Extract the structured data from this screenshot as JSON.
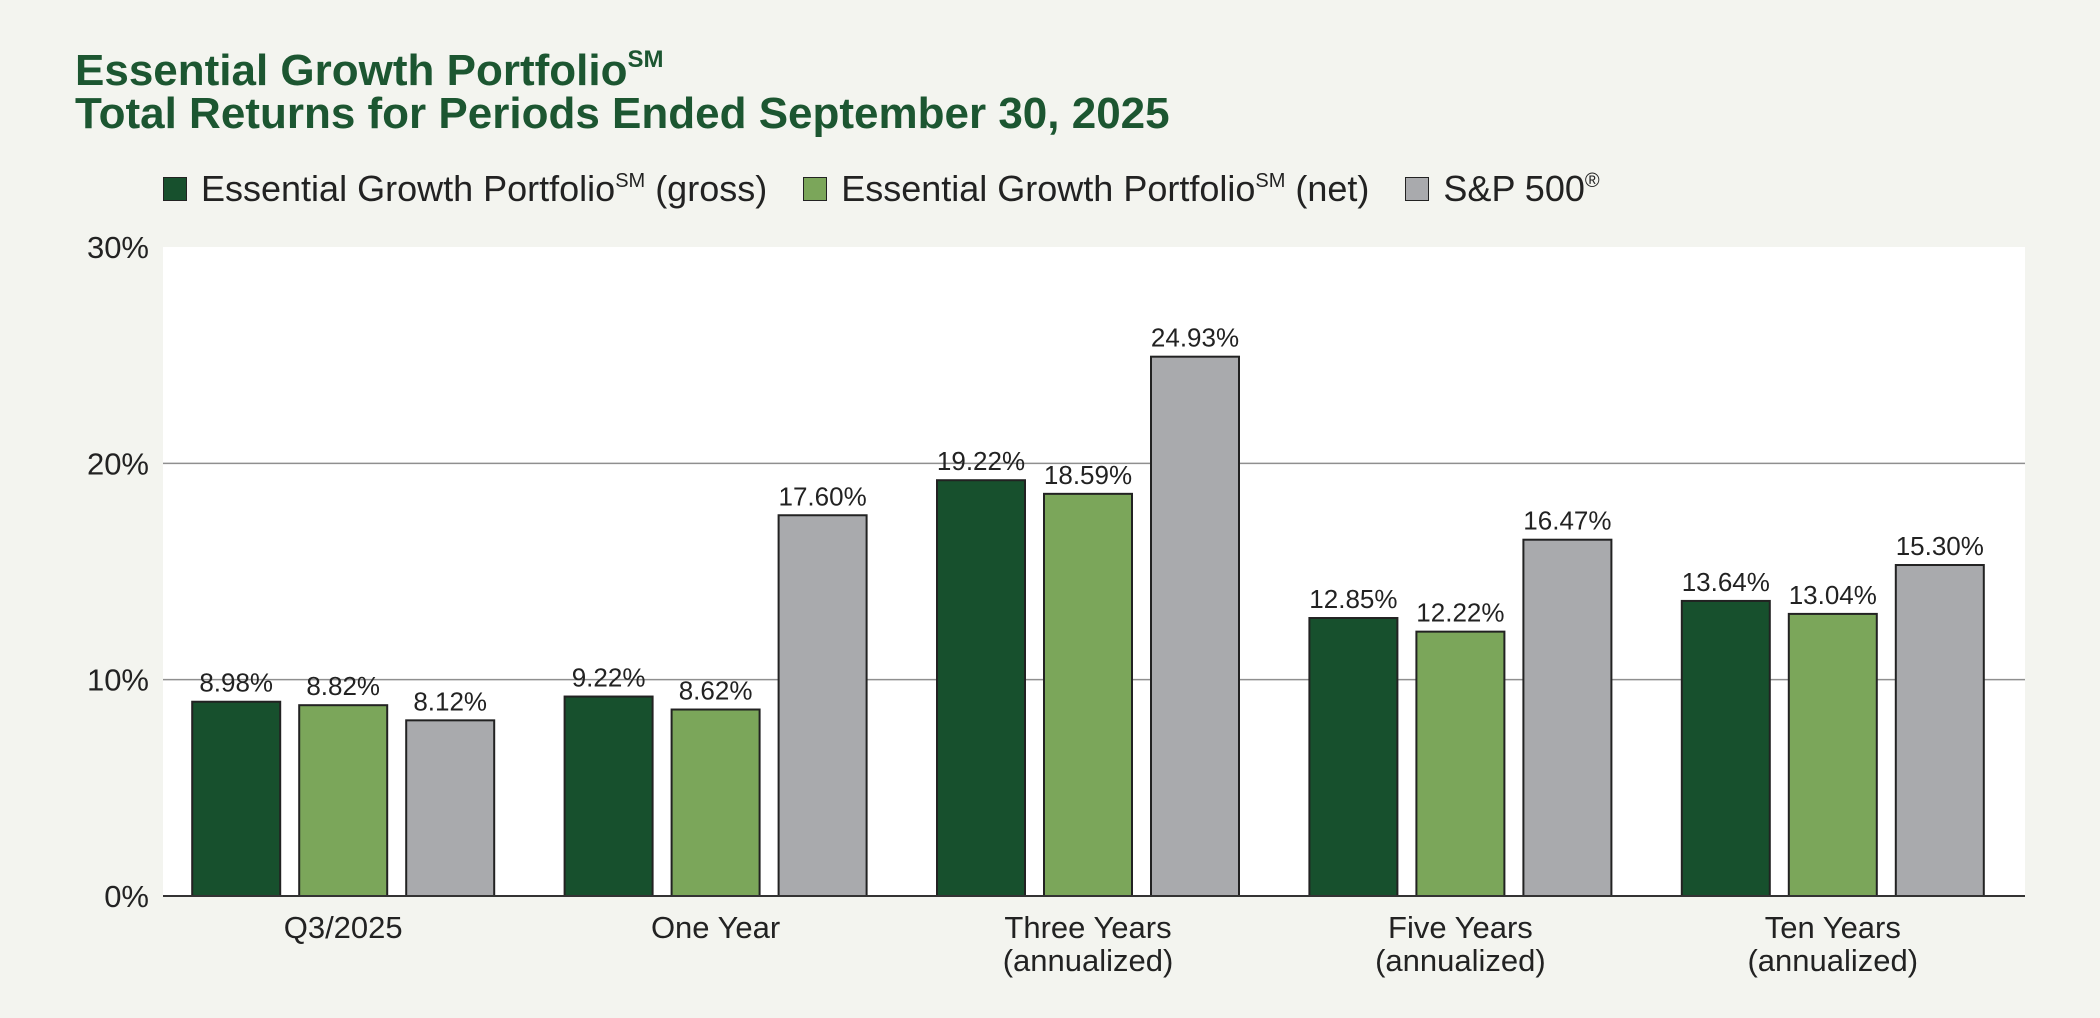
{
  "colors": {
    "title": "#1c5631",
    "gross": "#17502d",
    "net": "#7ba65a",
    "sp500": "#a9aaad",
    "plot_bg": "#ffffff",
    "page_bg": "#f3f4ef",
    "gridline": "#8f8f8f"
  },
  "title": {
    "line1_text": "Essential Growth Portfolio",
    "line1_mark": "SM",
    "line2": "Total Returns for Periods Ended September 30, 2025"
  },
  "legend": [
    {
      "label": "Essential Growth Portfolio",
      "mark": "SM",
      "suffix": " (gross)",
      "color": "#17502d"
    },
    {
      "label": "Essential Growth Portfolio",
      "mark": "SM",
      "suffix": " (net)",
      "color": "#7ba65a"
    },
    {
      "label": "S&P 500",
      "mark": "®",
      "suffix": "",
      "color": "#a9aaad"
    }
  ],
  "chart_data": {
    "type": "bar",
    "title": "Essential Growth Portfolio℠ Total Returns for Periods Ended September 30, 2025",
    "xlabel": "",
    "ylabel": "",
    "ylim": [
      0,
      30
    ],
    "yticks": [
      0,
      10,
      20,
      30
    ],
    "ytick_labels": [
      "0%",
      "10%",
      "20%",
      "30%"
    ],
    "grid": true,
    "legend_position": "top",
    "categories": [
      [
        "Q3/2025"
      ],
      [
        "One Year"
      ],
      [
        "Three Years",
        "(annualized)"
      ],
      [
        "Five Years",
        "(annualized)"
      ],
      [
        "Ten Years",
        "(annualized)"
      ]
    ],
    "series": [
      {
        "name": "Essential Growth Portfolio℠ (gross)",
        "color": "#17502d",
        "values": [
          8.98,
          9.22,
          19.22,
          12.85,
          13.64
        ],
        "labels": [
          "8.98%",
          "9.22%",
          "19.22%",
          "12.85%",
          "13.64%"
        ]
      },
      {
        "name": "Essential Growth Portfolio℠ (net)",
        "color": "#7ba65a",
        "values": [
          8.82,
          8.62,
          18.59,
          12.22,
          13.04
        ],
        "labels": [
          "8.82%",
          "8.62%",
          "18.59%",
          "12.22%",
          "13.04%"
        ]
      },
      {
        "name": "S&P 500®",
        "color": "#a9aaad",
        "values": [
          8.12,
          17.6,
          24.93,
          16.47,
          15.3
        ],
        "labels": [
          "8.12%",
          "17.60%",
          "24.93%",
          "16.47%",
          "15.30%"
        ]
      }
    ]
  }
}
